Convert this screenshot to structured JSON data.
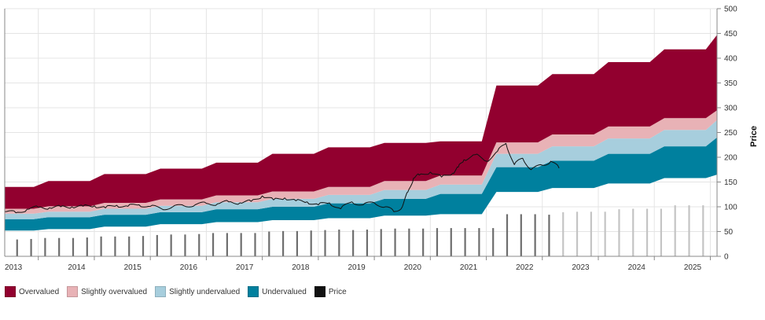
{
  "chart_data": {
    "type": "area",
    "x_ticks": [
      "2013",
      "2014",
      "2015",
      "2016",
      "2017",
      "2018",
      "2019",
      "2020",
      "2021",
      "2022",
      "2023",
      "2024",
      "2025"
    ],
    "y_ticks": [
      0,
      50,
      100,
      150,
      200,
      250,
      300,
      350,
      400,
      450,
      500
    ],
    "ylabel": "Price",
    "ylim": [
      0,
      500
    ],
    "xlim": [
      2012.9,
      2025.62
    ],
    "grid": true,
    "legend": "bottom-left",
    "bands": {
      "t": [
        2012.9,
        2013.42,
        2013.68,
        2014.42,
        2014.68,
        2015.42,
        2015.68,
        2016.42,
        2016.68,
        2017.42,
        2017.68,
        2018.42,
        2018.68,
        2019.42,
        2019.68,
        2020.42,
        2020.68,
        2021.42,
        2021.68,
        2022.42,
        2022.68,
        2023.42,
        2023.68,
        2024.42,
        2024.68,
        2025.42,
        2025.62
      ],
      "base": [
        52,
        52,
        55,
        55,
        60,
        60,
        65,
        65,
        69,
        69,
        73,
        73,
        77,
        77,
        82,
        82,
        85,
        85,
        130,
        130,
        138,
        138,
        147,
        147,
        158,
        158,
        165
      ],
      "undervalued": [
        75,
        75,
        79,
        79,
        84,
        84,
        89,
        89,
        95,
        95,
        100,
        100,
        107,
        107,
        116,
        116,
        126,
        126,
        180,
        180,
        193,
        193,
        207,
        207,
        222,
        222,
        240
      ],
      "slightly_undervalued": [
        86,
        86,
        90,
        90,
        96,
        96,
        102,
        102,
        109,
        109,
        116,
        116,
        124,
        124,
        134,
        134,
        145,
        145,
        207,
        207,
        222,
        222,
        238,
        238,
        255,
        255,
        275
      ],
      "slightly_overvalued": [
        96,
        96,
        101,
        101,
        108,
        108,
        115,
        115,
        123,
        123,
        131,
        131,
        140,
        140,
        152,
        152,
        163,
        163,
        230,
        230,
        246,
        246,
        262,
        262,
        279,
        279,
        295
      ],
      "overvalued": [
        140,
        140,
        152,
        152,
        166,
        166,
        177,
        177,
        189,
        189,
        207,
        207,
        220,
        220,
        229,
        229,
        232,
        232,
        345,
        345,
        368,
        368,
        392,
        392,
        418,
        418,
        447
      ]
    },
    "price": {
      "name": "Price",
      "x": [
        2012.9,
        2013.1,
        2013.3,
        2013.5,
        2013.7,
        2013.9,
        2014.1,
        2014.3,
        2014.5,
        2014.7,
        2014.9,
        2015.1,
        2015.3,
        2015.5,
        2015.7,
        2015.9,
        2016.1,
        2016.3,
        2016.5,
        2016.7,
        2016.9,
        2017.1,
        2017.3,
        2017.5,
        2017.7,
        2017.9,
        2018.1,
        2018.3,
        2018.5,
        2018.7,
        2018.9,
        2019.1,
        2019.3,
        2019.5,
        2019.7,
        2019.85,
        2020.0,
        2020.1,
        2020.2,
        2020.3,
        2020.5,
        2020.7,
        2020.9,
        2021.0,
        2021.1,
        2021.3,
        2021.5,
        2021.7,
        2021.85,
        2022.0,
        2022.15,
        2022.3,
        2022.5,
        2022.65,
        2022.8
      ],
      "y": [
        90,
        88,
        95,
        99,
        98,
        100,
        100,
        101,
        102,
        98,
        103,
        101,
        104,
        101,
        96,
        100,
        102,
        104,
        107,
        106,
        110,
        108,
        111,
        122,
        114,
        118,
        112,
        110,
        104,
        108,
        96,
        110,
        104,
        108,
        100,
        90,
        100,
        130,
        158,
        164,
        170,
        160,
        168,
        180,
        195,
        205,
        192,
        212,
        228,
        185,
        198,
        175,
        184,
        192,
        178
      ]
    },
    "bars": {
      "x": [
        2013.12,
        2013.37,
        2013.62,
        2013.87,
        2014.12,
        2014.37,
        2014.62,
        2014.87,
        2015.12,
        2015.37,
        2015.62,
        2015.87,
        2016.12,
        2016.37,
        2016.62,
        2016.87,
        2017.12,
        2017.37,
        2017.62,
        2017.87,
        2018.12,
        2018.37,
        2018.62,
        2018.87,
        2019.12,
        2019.37,
        2019.62,
        2019.87,
        2020.12,
        2020.37,
        2020.62,
        2020.87,
        2021.12,
        2021.37,
        2021.62,
        2021.87,
        2022.12,
        2022.37,
        2022.62,
        2022.87,
        2023.12,
        2023.37,
        2023.62,
        2023.87,
        2024.12,
        2024.37,
        2024.62,
        2024.87,
        2025.12,
        2025.37
      ],
      "y": [
        34,
        35,
        37,
        37,
        37,
        38,
        40,
        40,
        40,
        41,
        43,
        44,
        44,
        45,
        47,
        47,
        47,
        47,
        50,
        51,
        51,
        52,
        53,
        54,
        53,
        54,
        55,
        56,
        56,
        56,
        57,
        57,
        57,
        57,
        57,
        85,
        85,
        85,
        84,
        89,
        90,
        90,
        90,
        95,
        96,
        96,
        96,
        103,
        103,
        103
      ],
      "forecast_from": 2022.85
    },
    "series": [
      {
        "name": "Overvalued",
        "color": "#92002f"
      },
      {
        "name": "Slightly overvalued",
        "color": "#e8b2b6"
      },
      {
        "name": "Slightly undervalued",
        "color": "#a7cedd"
      },
      {
        "name": "Undervalued",
        "color": "#00809e"
      },
      {
        "name": "Price",
        "color": "#111111"
      }
    ]
  }
}
